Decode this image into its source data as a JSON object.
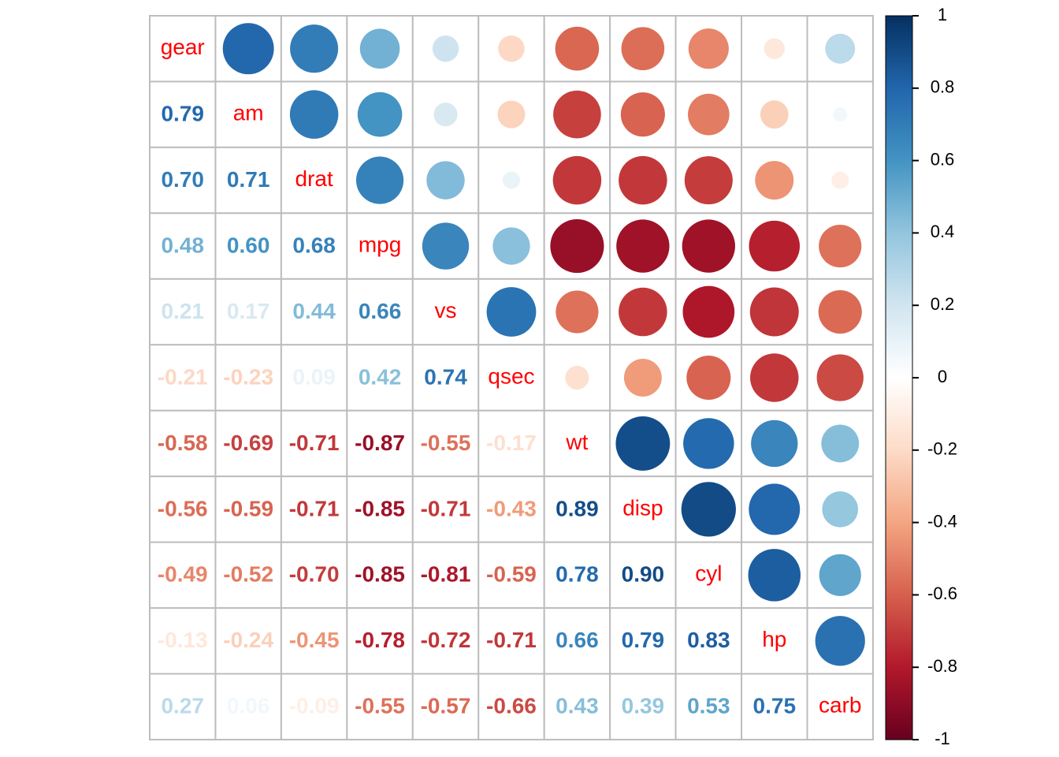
{
  "chart_data": {
    "type": "heatmap",
    "method": "circle upper, number lower",
    "variables": [
      "gear",
      "am",
      "drat",
      "mpg",
      "vs",
      "qsec",
      "wt",
      "disp",
      "cyl",
      "hp",
      "carb"
    ],
    "matrix": [
      [
        1.0,
        0.79,
        0.7,
        0.48,
        0.21,
        -0.21,
        -0.58,
        -0.56,
        -0.49,
        -0.13,
        0.27
      ],
      [
        0.79,
        1.0,
        0.71,
        0.6,
        0.17,
        -0.23,
        -0.69,
        -0.59,
        -0.52,
        -0.24,
        0.06
      ],
      [
        0.7,
        0.71,
        1.0,
        0.68,
        0.44,
        0.09,
        -0.71,
        -0.71,
        -0.7,
        -0.45,
        -0.09
      ],
      [
        0.48,
        0.6,
        0.68,
        1.0,
        0.66,
        0.42,
        -0.87,
        -0.85,
        -0.85,
        -0.78,
        -0.55
      ],
      [
        0.21,
        0.17,
        0.44,
        0.66,
        1.0,
        0.74,
        -0.55,
        -0.71,
        -0.81,
        -0.72,
        -0.57
      ],
      [
        -0.21,
        -0.23,
        0.09,
        0.42,
        0.74,
        1.0,
        -0.17,
        -0.43,
        -0.59,
        -0.71,
        -0.66
      ],
      [
        -0.58,
        -0.69,
        -0.71,
        -0.87,
        -0.55,
        -0.17,
        1.0,
        0.89,
        0.78,
        0.66,
        0.43
      ],
      [
        -0.56,
        -0.59,
        -0.71,
        -0.85,
        -0.71,
        -0.43,
        0.89,
        1.0,
        0.9,
        0.79,
        0.39
      ],
      [
        -0.49,
        -0.52,
        -0.7,
        -0.85,
        -0.81,
        -0.59,
        0.78,
        0.9,
        1.0,
        0.83,
        0.53
      ],
      [
        -0.13,
        -0.24,
        -0.45,
        -0.78,
        -0.72,
        -0.71,
        0.66,
        0.79,
        0.83,
        1.0,
        0.75
      ],
      [
        0.27,
        0.06,
        -0.09,
        -0.55,
        -0.57,
        -0.66,
        0.43,
        0.39,
        0.53,
        0.75,
        1.0
      ]
    ],
    "color_range": [
      -1,
      1
    ],
    "colorbar_ticks": [
      "1",
      "0.8",
      "0.6",
      "0.4",
      "0.2",
      "0",
      "-0.2",
      "-0.4",
      "-0.6",
      "-0.8",
      "-1"
    ],
    "palette": [
      "#67001F",
      "#B2182B",
      "#D6604D",
      "#F4A582",
      "#FDDBC7",
      "#FFFFFF",
      "#D1E5F0",
      "#92C5DE",
      "#4393C3",
      "#2166AC",
      "#053061"
    ],
    "label_color": "#FF0000",
    "grid_color": "#BDBDBD",
    "legend_position": "right"
  }
}
